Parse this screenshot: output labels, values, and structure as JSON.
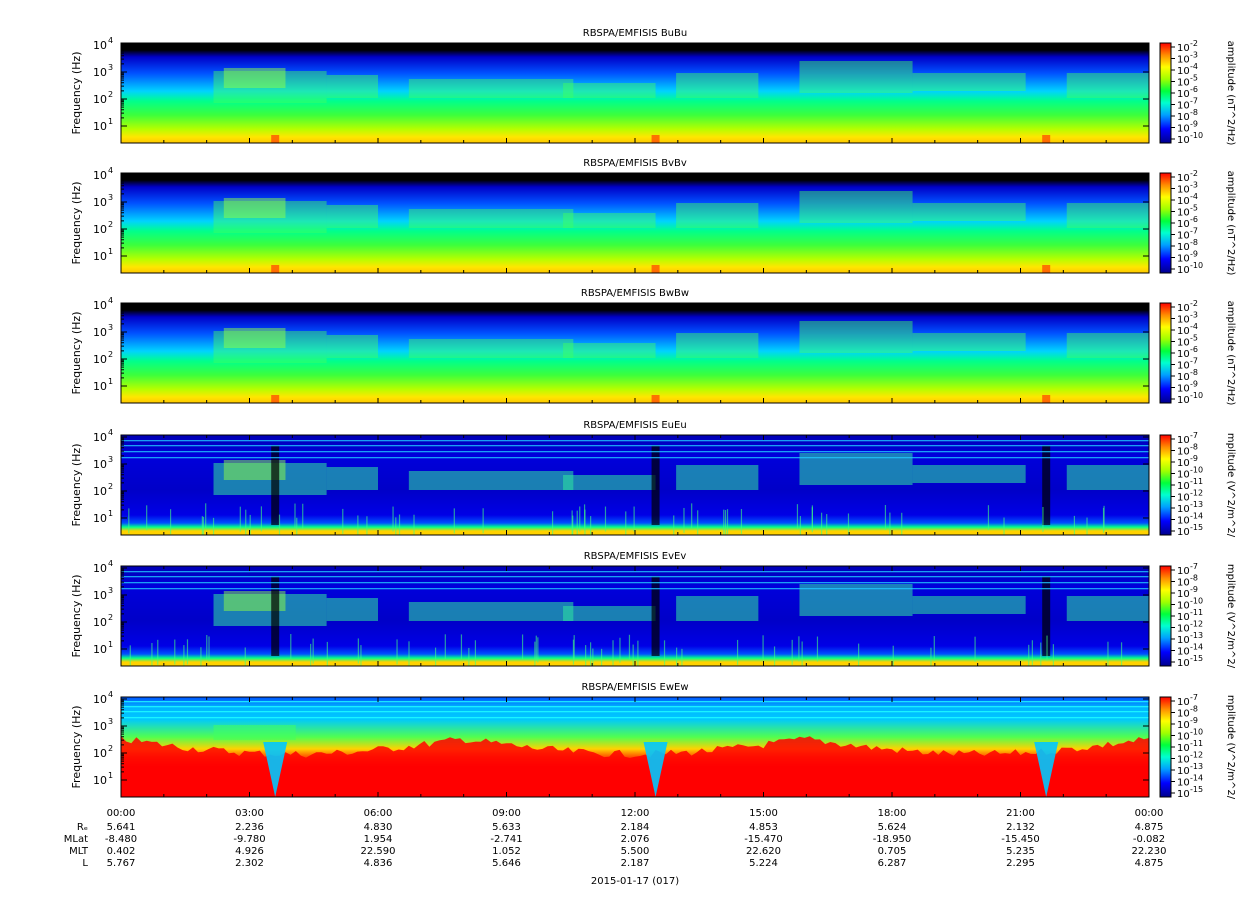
{
  "chart_data": {
    "type": "heatmap",
    "date_label": "2015-01-17 (017)",
    "x_ticks": [
      "00:00",
      "03:00",
      "06:00",
      "09:00",
      "12:00",
      "15:00",
      "18:00",
      "21:00",
      "00:00"
    ],
    "orbit_rows": [
      {
        "label": "Rₑ",
        "values": [
          "5.641",
          "2.236",
          "4.830",
          "5.633",
          "2.184",
          "4.853",
          "5.624",
          "2.132",
          "4.875"
        ]
      },
      {
        "label": "MLat",
        "values": [
          "-8.480",
          "-9.780",
          "1.954",
          "-2.741",
          "2.076",
          "-15.470",
          "-18.950",
          "-15.450",
          "-0.082"
        ]
      },
      {
        "label": "MLT",
        "values": [
          "0.402",
          "4.926",
          "22.590",
          "1.052",
          "5.500",
          "22.620",
          "0.705",
          "5.235",
          "22.230"
        ]
      },
      {
        "label": "L",
        "values": [
          "5.767",
          "2.302",
          "4.836",
          "5.646",
          "2.187",
          "5.224",
          "6.287",
          "2.295",
          "4.875"
        ]
      }
    ],
    "y_label": "Frequency (Hz)",
    "y_ticks": [
      "10",
      "10",
      "10",
      "10"
    ],
    "y_exps": [
      "1",
      "2",
      "3",
      "4"
    ],
    "panels": [
      {
        "title": "RBSPA/EMFISIS  BuBu",
        "kind": "B",
        "cbar_label": "amplitude (nT^2/Hz)",
        "cbar_exps": [
          "-2",
          "-3",
          "-4",
          "-5",
          "-6",
          "-7",
          "-8",
          "-9",
          "-10"
        ]
      },
      {
        "title": "RBSPA/EMFISIS  BvBv",
        "kind": "B",
        "cbar_label": "amplitude (nT^2/Hz)",
        "cbar_exps": [
          "-2",
          "-3",
          "-4",
          "-5",
          "-6",
          "-7",
          "-8",
          "-9",
          "-10"
        ]
      },
      {
        "title": "RBSPA/EMFISIS  BwBw",
        "kind": "B",
        "cbar_label": "amplitude (nT^2/Hz)",
        "cbar_exps": [
          "-2",
          "-3",
          "-4",
          "-5",
          "-6",
          "-7",
          "-8",
          "-9",
          "-10"
        ]
      },
      {
        "title": "RBSPA/EMFISIS  EuEu",
        "kind": "E",
        "cbar_label": "mplitude (V^2/m^2/",
        "cbar_exps": [
          "-7",
          "-8",
          "-9",
          "-10",
          "-11",
          "-12",
          "-13",
          "-14",
          "-15"
        ]
      },
      {
        "title": "RBSPA/EMFISIS  EvEv",
        "kind": "E",
        "cbar_label": "mplitude (V^2/m^2/",
        "cbar_exps": [
          "-7",
          "-8",
          "-9",
          "-10",
          "-11",
          "-12",
          "-13",
          "-14",
          "-15"
        ]
      },
      {
        "title": "RBSPA/EMFISIS  EwEw",
        "kind": "Ew",
        "cbar_label": "mplitude (V^2/m^2/",
        "cbar_exps": [
          "-7",
          "-8",
          "-9",
          "-10",
          "-11",
          "-12",
          "-13",
          "-14",
          "-15"
        ]
      }
    ]
  }
}
